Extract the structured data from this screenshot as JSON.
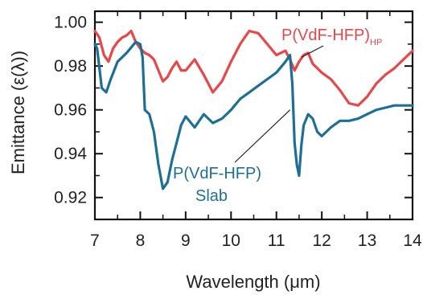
{
  "chart_data": {
    "type": "line",
    "title": "",
    "xlabel": "Wavelength (μm)",
    "ylabel": "Emittance (ε(λ))",
    "xlim": [
      7,
      14
    ],
    "ylim": [
      0.91,
      1.005
    ],
    "x_ticks": [
      7,
      8,
      9,
      10,
      11,
      12,
      13,
      14
    ],
    "y_ticks": [
      0.92,
      0.94,
      0.96,
      0.98,
      1.0
    ],
    "x_tick_labels": [
      "7",
      "8",
      "9",
      "10",
      "11",
      "12",
      "13",
      "14"
    ],
    "y_tick_labels": [
      "0.92",
      "0.94",
      "0.96",
      "0.98",
      "1.00"
    ],
    "grid": false,
    "legend": "none",
    "series": [
      {
        "name": "P(VdF-HFP)HP",
        "label_main": "P(VdF-HFP)",
        "label_sub": "HP",
        "color": "#e8474a",
        "x": [
          7.0,
          7.1,
          7.2,
          7.3,
          7.4,
          7.5,
          7.6,
          7.7,
          7.8,
          7.9,
          8.0,
          8.1,
          8.2,
          8.3,
          8.4,
          8.5,
          8.6,
          8.7,
          8.8,
          8.9,
          9.0,
          9.2,
          9.4,
          9.6,
          9.8,
          10.0,
          10.2,
          10.4,
          10.6,
          10.8,
          11.0,
          11.2,
          11.3,
          11.4,
          11.5,
          11.6,
          11.7,
          11.8,
          12.0,
          12.2,
          12.4,
          12.6,
          12.8,
          13.0,
          13.2,
          13.4,
          13.6,
          13.8,
          14.0
        ],
        "y": [
          0.996,
          0.993,
          0.985,
          0.982,
          0.988,
          0.991,
          0.993,
          0.994,
          0.996,
          0.991,
          0.988,
          0.986,
          0.985,
          0.983,
          0.978,
          0.973,
          0.975,
          0.979,
          0.982,
          0.978,
          0.978,
          0.983,
          0.976,
          0.968,
          0.973,
          0.982,
          0.99,
          0.996,
          0.995,
          0.99,
          0.985,
          0.987,
          0.983,
          0.978,
          0.982,
          0.985,
          0.986,
          0.981,
          0.977,
          0.974,
          0.969,
          0.963,
          0.962,
          0.966,
          0.972,
          0.976,
          0.979,
          0.983,
          0.987
        ]
      },
      {
        "name": "P(VdF-HFP) Slab",
        "label_main": "P(VdF-HFP)",
        "label_line2": "Slab",
        "color": "#1d6f96",
        "x": [
          7.0,
          7.05,
          7.15,
          7.25,
          7.35,
          7.5,
          7.7,
          7.9,
          8.0,
          8.05,
          8.1,
          8.2,
          8.3,
          8.4,
          8.5,
          8.6,
          8.7,
          8.8,
          8.9,
          9.0,
          9.2,
          9.4,
          9.6,
          9.8,
          10.0,
          10.2,
          10.4,
          10.6,
          10.8,
          11.0,
          11.2,
          11.3,
          11.35,
          11.4,
          11.45,
          11.5,
          11.55,
          11.6,
          11.7,
          11.8,
          11.9,
          12.0,
          12.2,
          12.4,
          12.6,
          12.8,
          13.0,
          13.2,
          13.4,
          13.6,
          13.8,
          14.0
        ],
        "y": [
          0.99,
          0.988,
          0.97,
          0.968,
          0.974,
          0.982,
          0.986,
          0.991,
          0.99,
          0.984,
          0.96,
          0.958,
          0.95,
          0.935,
          0.924,
          0.927,
          0.937,
          0.945,
          0.953,
          0.957,
          0.952,
          0.958,
          0.954,
          0.956,
          0.96,
          0.965,
          0.968,
          0.971,
          0.974,
          0.977,
          0.982,
          0.985,
          0.972,
          0.945,
          0.935,
          0.93,
          0.944,
          0.953,
          0.958,
          0.956,
          0.95,
          0.948,
          0.952,
          0.955,
          0.955,
          0.956,
          0.958,
          0.96,
          0.961,
          0.962,
          0.962,
          0.962
        ]
      }
    ]
  }
}
